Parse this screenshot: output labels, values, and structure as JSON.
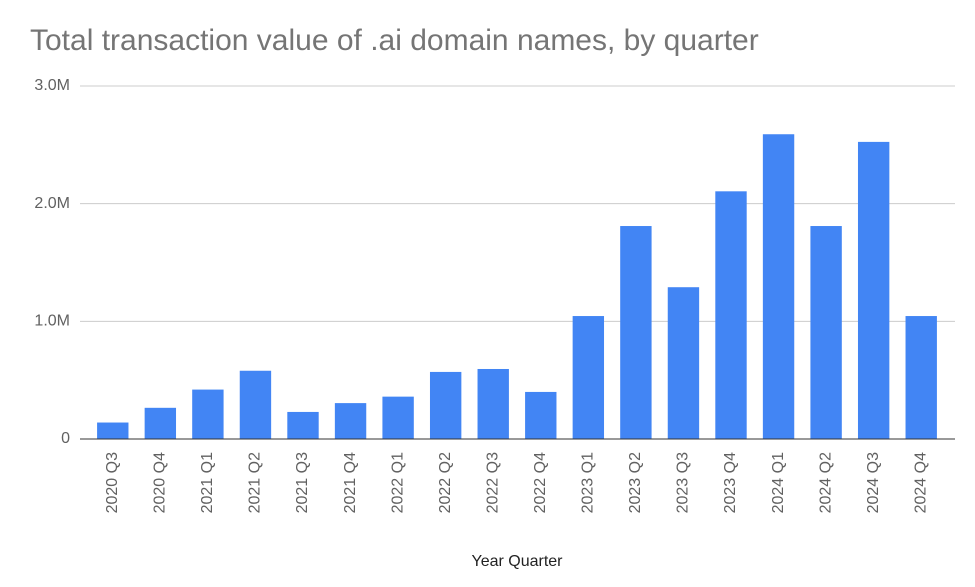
{
  "chart_data": {
    "type": "bar",
    "title": "Total transaction value of .ai domain names, by quarter",
    "x_label": "Year Quarter",
    "categories": [
      "2020 Q3",
      "2020 Q4",
      "2021 Q1",
      "2021 Q2",
      "2021 Q3",
      "2021 Q4",
      "2022 Q1",
      "2022 Q2",
      "2022 Q3",
      "2022 Q4",
      "2023 Q1",
      "2023 Q2",
      "2023 Q3",
      "2023 Q4",
      "2024 Q1",
      "2024 Q2",
      "2024 Q3",
      "2024 Q4"
    ],
    "values": [
      140000,
      265000,
      420000,
      580000,
      230000,
      305000,
      360000,
      570000,
      595000,
      400000,
      1045000,
      1810000,
      1290000,
      2105000,
      2590000,
      1810000,
      2525000,
      1045000
    ],
    "color": "#4285f4",
    "ylim": [
      0,
      3000000
    ],
    "yticks": [
      0,
      {
        "value": 1000000,
        "label": "1.0M"
      },
      {
        "value": 2000000,
        "label": "2.0M"
      },
      {
        "value": 3000000,
        "label": "3.0M"
      }
    ],
    "grid": true
  }
}
